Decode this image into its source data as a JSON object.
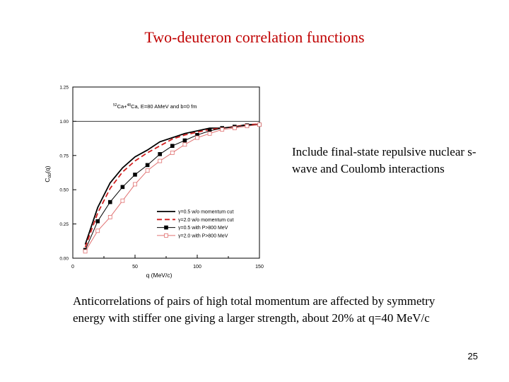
{
  "slide": {
    "title": "Two-deuteron correlation functions",
    "side_note": "Include final-state repulsive nuclear s-wave and Coulomb interactions",
    "bottom_note": "Anticorrelations of pairs of high total momentum are affected by symmetry energy with stiffer one giving a larger strength, about 20% at q=40 MeV/c",
    "page_number": "25"
  },
  "chart_data": {
    "type": "line",
    "annotation_prefix_a": "52",
    "annotation_el_a": "Ca+",
    "annotation_prefix_b": "48",
    "annotation_el_b": "Ca, E=80 AMeV and b=0 fm",
    "xlabel": "q (MeV/c)",
    "ylabel_main": "C",
    "ylabel_sub": "dd",
    "ylabel_tail": "(q)",
    "xlim": [
      0,
      150
    ],
    "ylim": [
      0,
      1.25
    ],
    "xticks": [
      0,
      50,
      100,
      150
    ],
    "xtick_labels": [
      "0",
      "50",
      "100",
      "150"
    ],
    "yticks": [
      0,
      0.25,
      0.5,
      0.75,
      1.0,
      1.25
    ],
    "ytick_labels": [
      "0.00",
      "0.25",
      "0.50",
      "0.75",
      "1.00",
      "1.25"
    ],
    "reference_line_y": 1.0,
    "grid": false,
    "legend_position": "bottom-right",
    "x": [
      10,
      20,
      30,
      40,
      50,
      60,
      70,
      80,
      90,
      100,
      110,
      120,
      130,
      140,
      150
    ],
    "series": [
      {
        "name": "γ=0.5 w/o momentum cut",
        "color": "#000000",
        "style": "solid",
        "marker": "none",
        "values": [
          0.1,
          0.37,
          0.55,
          0.66,
          0.74,
          0.79,
          0.85,
          0.88,
          0.91,
          0.93,
          0.95,
          0.95,
          0.96,
          0.975,
          0.975
        ]
      },
      {
        "name": "γ=2.0 w/o momentum cut",
        "color": "#d22020",
        "style": "dashed",
        "marker": "none",
        "values": [
          0.08,
          0.33,
          0.51,
          0.63,
          0.71,
          0.77,
          0.82,
          0.87,
          0.9,
          0.92,
          0.94,
          0.95,
          0.96,
          0.975,
          0.98
        ]
      },
      {
        "name": "γ=0.5 with P>800 MeV",
        "color": "#000000",
        "style": "solid",
        "marker": "filled-square",
        "values": [
          0.06,
          0.27,
          0.41,
          0.52,
          0.61,
          0.68,
          0.76,
          0.82,
          0.86,
          0.9,
          0.93,
          0.95,
          0.96,
          0.97,
          0.975
        ]
      },
      {
        "name": "γ=2.0 with P>800 MeV",
        "color": "#e07070",
        "style": "solid",
        "marker": "open-square",
        "values": [
          0.05,
          0.2,
          0.3,
          0.42,
          0.54,
          0.64,
          0.71,
          0.77,
          0.83,
          0.88,
          0.91,
          0.94,
          0.95,
          0.965,
          0.975
        ]
      }
    ]
  }
}
